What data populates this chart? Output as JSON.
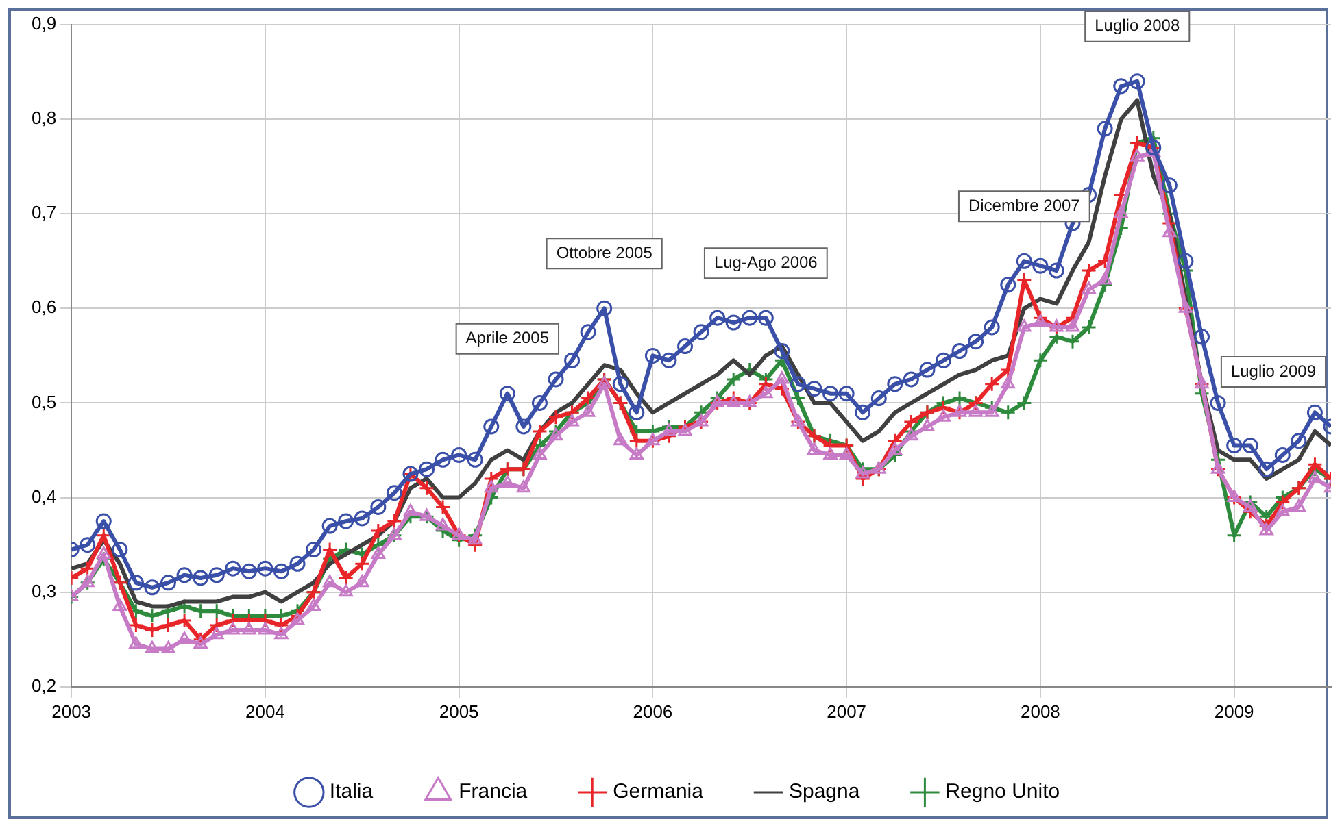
{
  "chart_data": {
    "type": "line",
    "x": [
      "2003-01",
      "2003-02",
      "2003-03",
      "2003-04",
      "2003-05",
      "2003-06",
      "2003-07",
      "2003-08",
      "2003-09",
      "2003-10",
      "2003-11",
      "2003-12",
      "2004-01",
      "2004-02",
      "2004-03",
      "2004-04",
      "2004-05",
      "2004-06",
      "2004-07",
      "2004-08",
      "2004-09",
      "2004-10",
      "2004-11",
      "2004-12",
      "2005-01",
      "2005-02",
      "2005-03",
      "2005-04",
      "2005-05",
      "2005-06",
      "2005-07",
      "2005-08",
      "2005-09",
      "2005-10",
      "2005-11",
      "2005-12",
      "2006-01",
      "2006-02",
      "2006-03",
      "2006-04",
      "2006-05",
      "2006-06",
      "2006-07",
      "2006-08",
      "2006-09",
      "2006-10",
      "2006-11",
      "2006-12",
      "2007-01",
      "2007-02",
      "2007-03",
      "2007-04",
      "2007-05",
      "2007-06",
      "2007-07",
      "2007-08",
      "2007-09",
      "2007-10",
      "2007-11",
      "2007-12",
      "2008-01",
      "2008-02",
      "2008-03",
      "2008-04",
      "2008-05",
      "2008-06",
      "2008-07",
      "2008-08",
      "2008-09",
      "2008-10",
      "2008-11",
      "2008-12",
      "2009-01",
      "2009-02",
      "2009-03",
      "2009-04",
      "2009-05",
      "2009-06",
      "2009-07"
    ],
    "series": [
      {
        "name": "Italia",
        "color": "#3a4fa8",
        "marker": "circle",
        "values": [
          0.345,
          0.35,
          0.375,
          0.345,
          0.31,
          0.305,
          0.31,
          0.318,
          0.315,
          0.318,
          0.325,
          0.322,
          0.325,
          0.322,
          0.33,
          0.345,
          0.37,
          0.375,
          0.378,
          0.39,
          0.405,
          0.425,
          0.43,
          0.44,
          0.445,
          0.44,
          0.475,
          0.51,
          0.475,
          0.5,
          0.525,
          0.545,
          0.575,
          0.6,
          0.52,
          0.49,
          0.55,
          0.545,
          0.56,
          0.575,
          0.59,
          0.585,
          0.59,
          0.59,
          0.555,
          0.52,
          0.515,
          0.51,
          0.51,
          0.49,
          0.505,
          0.52,
          0.525,
          0.535,
          0.545,
          0.555,
          0.565,
          0.58,
          0.625,
          0.65,
          0.645,
          0.64,
          0.69,
          0.72,
          0.79,
          0.835,
          0.84,
          0.77,
          0.73,
          0.65,
          0.57,
          0.5,
          0.455,
          0.455,
          0.43,
          0.445,
          0.46,
          0.49,
          0.475
        ]
      },
      {
        "name": "Francia",
        "color": "#c77bc7",
        "marker": "triangle",
        "values": [
          0.295,
          0.31,
          0.34,
          0.285,
          0.245,
          0.24,
          0.24,
          0.25,
          0.245,
          0.255,
          0.26,
          0.26,
          0.26,
          0.255,
          0.27,
          0.285,
          0.31,
          0.3,
          0.31,
          0.34,
          0.36,
          0.385,
          0.38,
          0.37,
          0.36,
          0.355,
          0.41,
          0.415,
          0.41,
          0.445,
          0.465,
          0.48,
          0.49,
          0.52,
          0.46,
          0.445,
          0.46,
          0.47,
          0.47,
          0.48,
          0.5,
          0.5,
          0.5,
          0.51,
          0.525,
          0.48,
          0.45,
          0.445,
          0.445,
          0.425,
          0.43,
          0.45,
          0.465,
          0.475,
          0.485,
          0.49,
          0.49,
          0.49,
          0.52,
          0.58,
          0.585,
          0.58,
          0.58,
          0.62,
          0.63,
          0.7,
          0.76,
          0.765,
          0.68,
          0.6,
          0.52,
          0.43,
          0.4,
          0.39,
          0.365,
          0.385,
          0.39,
          0.42,
          0.41
        ]
      },
      {
        "name": "Germania",
        "color": "#e8262a",
        "marker": "cross",
        "values": [
          0.315,
          0.325,
          0.36,
          0.31,
          0.265,
          0.26,
          0.265,
          0.27,
          0.25,
          0.265,
          0.27,
          0.27,
          0.27,
          0.265,
          0.275,
          0.3,
          0.345,
          0.315,
          0.33,
          0.365,
          0.375,
          0.425,
          0.41,
          0.39,
          0.36,
          0.35,
          0.42,
          0.43,
          0.43,
          0.47,
          0.485,
          0.49,
          0.505,
          0.525,
          0.5,
          0.46,
          0.46,
          0.465,
          0.475,
          0.48,
          0.5,
          0.505,
          0.5,
          0.52,
          0.515,
          0.48,
          0.465,
          0.455,
          0.455,
          0.42,
          0.43,
          0.46,
          0.48,
          0.49,
          0.495,
          0.49,
          0.5,
          0.52,
          0.535,
          0.63,
          0.59,
          0.58,
          0.59,
          0.64,
          0.65,
          0.72,
          0.775,
          0.77,
          0.69,
          0.6,
          0.52,
          0.43,
          0.4,
          0.385,
          0.37,
          0.395,
          0.41,
          0.435,
          0.42
        ]
      },
      {
        "name": "Spagna",
        "color": "#404040",
        "marker": "none",
        "values": [
          0.325,
          0.33,
          0.355,
          0.33,
          0.29,
          0.285,
          0.285,
          0.29,
          0.29,
          0.29,
          0.295,
          0.295,
          0.3,
          0.29,
          0.3,
          0.31,
          0.33,
          0.34,
          0.35,
          0.36,
          0.375,
          0.41,
          0.42,
          0.4,
          0.4,
          0.415,
          0.44,
          0.45,
          0.44,
          0.47,
          0.49,
          0.5,
          0.52,
          0.54,
          0.535,
          0.51,
          0.49,
          0.5,
          0.51,
          0.52,
          0.53,
          0.545,
          0.53,
          0.55,
          0.56,
          0.53,
          0.5,
          0.5,
          0.48,
          0.46,
          0.47,
          0.49,
          0.5,
          0.51,
          0.52,
          0.53,
          0.535,
          0.545,
          0.55,
          0.6,
          0.61,
          0.605,
          0.64,
          0.67,
          0.74,
          0.8,
          0.82,
          0.74,
          0.7,
          0.61,
          0.52,
          0.45,
          0.44,
          0.44,
          0.42,
          0.43,
          0.44,
          0.47,
          0.455
        ]
      },
      {
        "name": "Regno Unito",
        "color": "#2e8b3e",
        "marker": "cross",
        "values": [
          0.295,
          0.31,
          0.335,
          0.31,
          0.28,
          0.275,
          0.28,
          0.285,
          0.28,
          0.28,
          0.275,
          0.275,
          0.275,
          0.275,
          0.28,
          0.3,
          0.335,
          0.345,
          0.34,
          0.35,
          0.36,
          0.38,
          0.38,
          0.365,
          0.355,
          0.36,
          0.4,
          0.43,
          0.43,
          0.455,
          0.47,
          0.49,
          0.5,
          0.525,
          0.5,
          0.47,
          0.47,
          0.475,
          0.475,
          0.49,
          0.505,
          0.525,
          0.535,
          0.525,
          0.545,
          0.505,
          0.465,
          0.46,
          0.455,
          0.43,
          0.43,
          0.445,
          0.47,
          0.49,
          0.5,
          0.505,
          0.5,
          0.495,
          0.49,
          0.5,
          0.545,
          0.57,
          0.565,
          0.58,
          0.625,
          0.685,
          0.775,
          0.78,
          0.7,
          0.64,
          0.51,
          0.44,
          0.36,
          0.395,
          0.38,
          0.4,
          0.41,
          0.43,
          0.42
        ]
      }
    ],
    "xlim": [
      "2003-01",
      "2009-07"
    ],
    "xticks": [
      "2003",
      "2004",
      "2005",
      "2006",
      "2007",
      "2008",
      "2009"
    ],
    "ylim": [
      0.2,
      0.9
    ],
    "yticks": [
      {
        "value": 0.2,
        "label": "0,2"
      },
      {
        "value": 0.3,
        "label": "0,3"
      },
      {
        "value": 0.4,
        "label": "0,4"
      },
      {
        "value": 0.5,
        "label": "0,5"
      },
      {
        "value": 0.6,
        "label": "0,6"
      },
      {
        "value": 0.7,
        "label": "0,7"
      },
      {
        "value": 0.8,
        "label": "0,8"
      },
      {
        "value": 0.9,
        "label": "0,9"
      }
    ],
    "annotations": [
      {
        "text": "Aprile 2005",
        "x": "2005-04",
        "y": 0.51
      },
      {
        "text": "Ottobre 2005",
        "x": "2005-10",
        "y": 0.6
      },
      {
        "text": "Lug-Ago 2006",
        "x": "2006-08",
        "y": 0.59
      },
      {
        "text": "Dicembre 2007",
        "x": "2007-12",
        "y": 0.65
      },
      {
        "text": "Luglio 2008",
        "x": "2008-07",
        "y": 0.84
      },
      {
        "text": "Luglio 2009",
        "x": "2009-07",
        "y": 0.475
      }
    ],
    "grid": true,
    "legend": "bottom",
    "line_style": "solid"
  }
}
